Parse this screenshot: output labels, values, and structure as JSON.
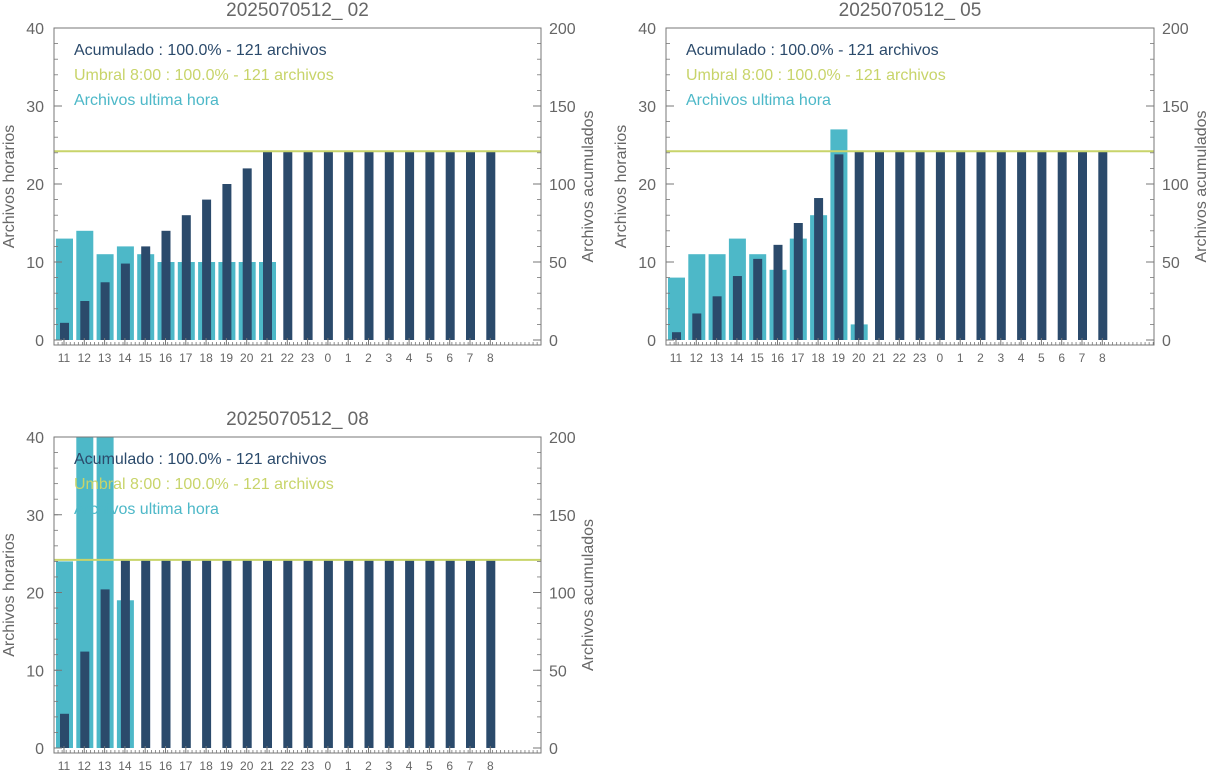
{
  "colors": {
    "hourly": "#4db8c8",
    "cumulative": "#2b4a6b",
    "threshold": "#c8d46a",
    "axis": "#777777",
    "text": "#666666"
  },
  "legend": {
    "cumulative": "Acumulado : 100.0% - 121 archivos",
    "threshold": "Umbral 8:00 : 100.0% - 121 archivos",
    "hourly": "Archivos ultima hora"
  },
  "chart_data": [
    {
      "type": "bar",
      "title": "2025070512_ 02",
      "ylabel_left": "Archivos horarios",
      "ylabel_right": "Archivos acumulados",
      "ylim_left": [
        0,
        40
      ],
      "ylim_right": [
        0,
        200
      ],
      "yticks_left": [
        "0",
        "10",
        "20",
        "30",
        "40"
      ],
      "yticks_right": [
        "0",
        "50",
        "100",
        "150",
        "200"
      ],
      "categories": [
        "11",
        "12",
        "13",
        "14",
        "15",
        "16",
        "17",
        "18",
        "19",
        "20",
        "21",
        "22",
        "23",
        "0",
        "1",
        "2",
        "3",
        "4",
        "5",
        "6",
        "7",
        "8"
      ],
      "threshold": 121,
      "series": [
        {
          "name": "Archivos ultima hora",
          "axis": "left",
          "values": [
            13,
            14,
            11,
            12,
            11,
            10,
            10,
            10,
            10,
            10,
            10,
            0,
            0,
            0,
            0,
            0,
            0,
            0,
            0,
            0,
            0,
            0
          ]
        },
        {
          "name": "Acumulado",
          "axis": "right",
          "values": [
            11,
            25,
            37,
            49,
            60,
            70,
            80,
            90,
            100,
            110,
            121,
            121,
            121,
            121,
            121,
            121,
            121,
            121,
            121,
            121,
            121,
            121
          ]
        }
      ]
    },
    {
      "type": "bar",
      "title": "2025070512_ 05",
      "ylabel_left": "Archivos horarios",
      "ylabel_right": "Archivos acumulados",
      "ylim_left": [
        0,
        40
      ],
      "ylim_right": [
        0,
        200
      ],
      "yticks_left": [
        "0",
        "10",
        "20",
        "30",
        "40"
      ],
      "yticks_right": [
        "0",
        "50",
        "100",
        "150",
        "200"
      ],
      "categories": [
        "11",
        "12",
        "13",
        "14",
        "15",
        "16",
        "17",
        "18",
        "19",
        "20",
        "21",
        "22",
        "23",
        "0",
        "1",
        "2",
        "3",
        "4",
        "5",
        "6",
        "7",
        "8"
      ],
      "threshold": 121,
      "series": [
        {
          "name": "Archivos ultima hora",
          "axis": "left",
          "values": [
            8,
            11,
            11,
            13,
            11,
            9,
            13,
            16,
            27,
            2,
            0,
            0,
            0,
            0,
            0,
            0,
            0,
            0,
            0,
            0,
            0,
            0
          ]
        },
        {
          "name": "Acumulado",
          "axis": "right",
          "values": [
            5,
            17,
            28,
            41,
            52,
            61,
            75,
            91,
            119,
            121,
            121,
            121,
            121,
            121,
            121,
            121,
            121,
            121,
            121,
            121,
            121,
            121
          ]
        }
      ]
    },
    {
      "type": "bar",
      "title": "2025070512_ 08",
      "ylabel_left": "Archivos horarios",
      "ylabel_right": "Archivos acumulados",
      "ylim_left": [
        0,
        40
      ],
      "ylim_right": [
        0,
        200
      ],
      "yticks_left": [
        "0",
        "10",
        "20",
        "30",
        "40"
      ],
      "yticks_right": [
        "0",
        "50",
        "100",
        "150",
        "200"
      ],
      "categories": [
        "11",
        "12",
        "13",
        "14",
        "15",
        "16",
        "17",
        "18",
        "19",
        "20",
        "21",
        "22",
        "23",
        "0",
        "1",
        "2",
        "3",
        "4",
        "5",
        "6",
        "7",
        "8"
      ],
      "threshold": 121,
      "series": [
        {
          "name": "Archivos ultima hora",
          "axis": "left",
          "values": [
            24,
            40,
            40,
            19,
            0,
            0,
            0,
            0,
            0,
            0,
            0,
            0,
            0,
            0,
            0,
            0,
            0,
            0,
            0,
            0,
            0,
            0
          ]
        },
        {
          "name": "Acumulado",
          "axis": "right",
          "values": [
            22,
            62,
            102,
            121,
            121,
            121,
            121,
            121,
            121,
            121,
            121,
            121,
            121,
            121,
            121,
            121,
            121,
            121,
            121,
            121,
            121,
            121
          ]
        }
      ]
    }
  ]
}
